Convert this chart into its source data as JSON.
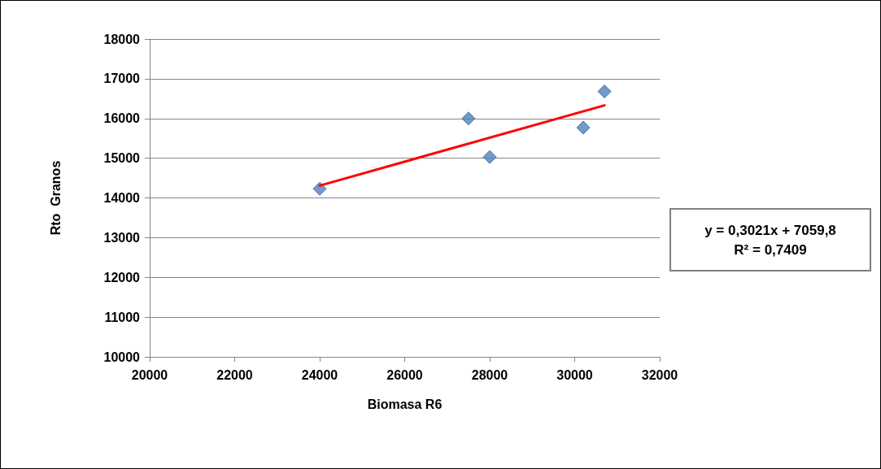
{
  "chart_data": {
    "type": "scatter",
    "xlabel": "Biomasa R6",
    "ylabel": "Rto  Granos",
    "series": [
      {
        "color": "#4f81bd",
        "x": [
          24000,
          27500,
          28000,
          30200,
          30700
        ],
        "values": [
          14230,
          16000,
          15030,
          15770,
          16680
        ],
        "marker": "diamond"
      },
      {
        "type": "line",
        "color": "#ff0000",
        "x": [
          24000,
          30700
        ],
        "values": [
          14310,
          16330
        ],
        "marker": "none"
      }
    ],
    "xlim": [
      20000,
      32000
    ],
    "xticks": [
      20000,
      22000,
      24000,
      26000,
      28000,
      30000,
      32000
    ],
    "ylim": [
      10000,
      18000
    ],
    "yticks": [
      10000,
      11000,
      12000,
      13000,
      14000,
      15000,
      16000,
      17000,
      18000
    ],
    "grid": "y",
    "annotations": [
      "y = 0,3021x + 7059,8\nR² = 0,7409"
    ]
  }
}
